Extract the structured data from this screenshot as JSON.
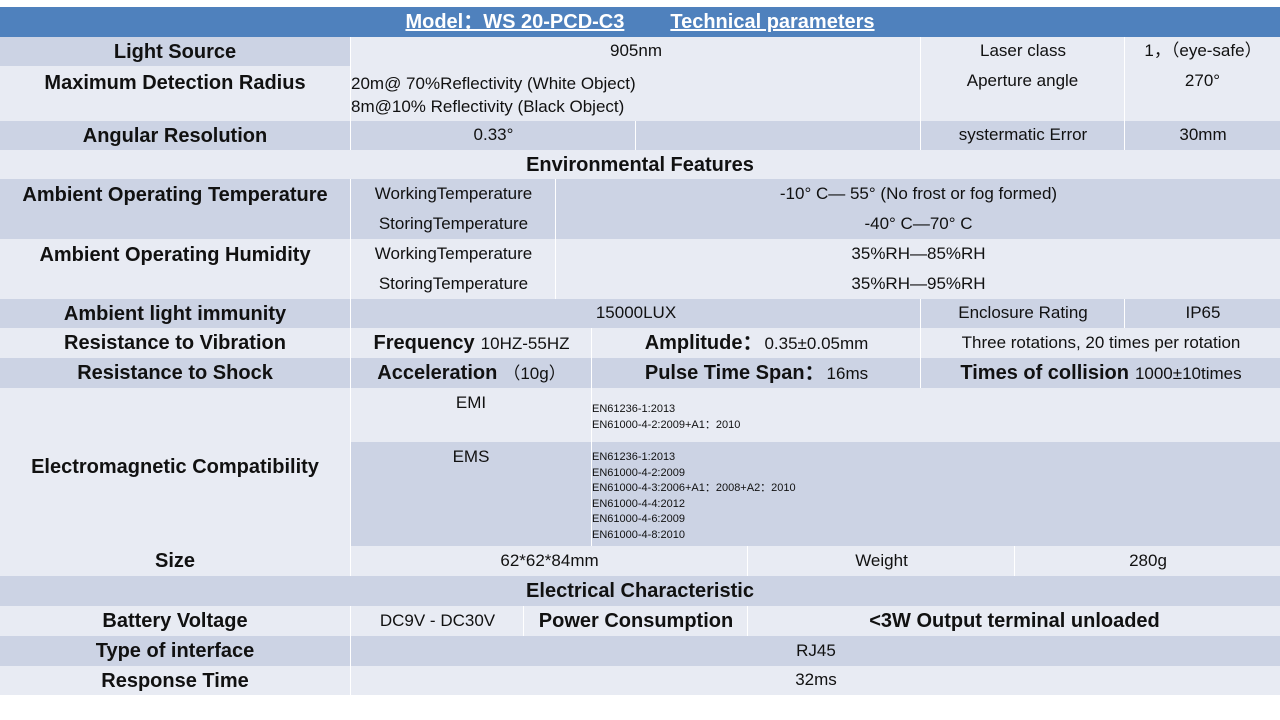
{
  "title": {
    "model": "Model：WS 20-PCD-C3",
    "params": "Technical parameters"
  },
  "light_source": {
    "label": "Light Source",
    "value": "905nm",
    "laser_label": "Laser class",
    "laser_value": "1，（eye-safe）"
  },
  "detection_radius": {
    "label": "Maximum Detection Radius",
    "line1": "20m@ 70%Reflectivity (White Object)",
    "line2": "8m@10% Reflectivity (Black Object)",
    "aperture_label": "Aperture angle",
    "aperture_value": "270°"
  },
  "angular_resolution": {
    "label": "Angular Resolution",
    "value": "0.33°",
    "error_label": "systermatic Error",
    "error_value": "30mm"
  },
  "environmental_header": "Environmental Features",
  "ambient_temp": {
    "label": "Ambient Operating Temperature",
    "working_label": "WorkingTemperature",
    "working_value": "-10° C— 55°  (No frost or fog formed)",
    "storing_label": "StoringTemperature",
    "storing_value": "-40° C—70° C"
  },
  "ambient_humidity": {
    "label": "Ambient Operating Humidity",
    "working_label": "WorkingTemperature",
    "working_value": "35%RH—85%RH",
    "storing_label": "StoringTemperature",
    "storing_value": "35%RH—95%RH"
  },
  "light_immunity": {
    "label": "Ambient light immunity",
    "value": "15000LUX",
    "enclosure_label": "Enclosure Rating",
    "enclosure_value": "IP65"
  },
  "vibration": {
    "label": "Resistance to Vibration",
    "freq_label": "Frequency",
    "freq_value": "10HZ-55HZ",
    "amp_label": "Amplitude：",
    "amp_value": "0.35±0.05mm",
    "rotations": "Three rotations, 20 times per rotation"
  },
  "shock": {
    "label": "Resistance to Shock",
    "acc_label": "Acceleration",
    "acc_value": "（10g）",
    "pulse_label": "Pulse Time Span：",
    "pulse_value": "16ms",
    "collision_label": "Times of collision",
    "collision_value": "1000±10times"
  },
  "emc": {
    "label": "Electromagnetic Compatibility",
    "emi_label": "EMI",
    "emi_standards": [
      "EN61236-1:2013",
      "EN61000-4-2:2009+A1：2010"
    ],
    "ems_label": "EMS",
    "ems_standards": [
      "EN61236-1:2013",
      "EN61000-4-2:2009",
      "EN61000-4-3:2006+A1：2008+A2：2010",
      "EN61000-4-4:2012",
      "EN61000-4-6:2009",
      "EN61000-4-8:2010"
    ]
  },
  "size": {
    "label": "Size",
    "value": "62*62*84mm",
    "weight_label": "Weight",
    "weight_value": "280g"
  },
  "electrical_header": "Electrical  Characteristic",
  "battery": {
    "label": "Battery Voltage",
    "value": "DC9V - DC30V",
    "power_label": "Power Consumption",
    "power_value": "<3W Output terminal unloaded"
  },
  "interface": {
    "label": "Type of interface",
    "value": "RJ45"
  },
  "response": {
    "label": "Response Time",
    "value": "32ms"
  }
}
